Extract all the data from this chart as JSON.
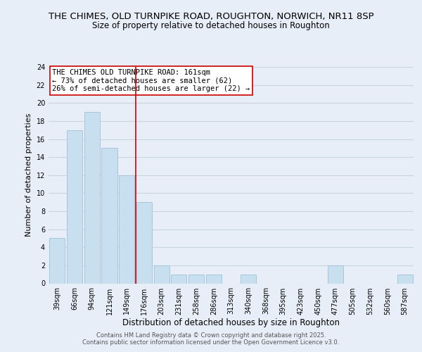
{
  "title": "THE CHIMES, OLD TURNPIKE ROAD, ROUGHTON, NORWICH, NR11 8SP",
  "subtitle": "Size of property relative to detached houses in Roughton",
  "xlabel": "Distribution of detached houses by size in Roughton",
  "ylabel": "Number of detached properties",
  "bar_labels": [
    "39sqm",
    "66sqm",
    "94sqm",
    "121sqm",
    "149sqm",
    "176sqm",
    "203sqm",
    "231sqm",
    "258sqm",
    "286sqm",
    "313sqm",
    "340sqm",
    "368sqm",
    "395sqm",
    "423sqm",
    "450sqm",
    "477sqm",
    "505sqm",
    "532sqm",
    "560sqm",
    "587sqm"
  ],
  "bar_values": [
    5,
    17,
    19,
    15,
    12,
    9,
    2,
    1,
    1,
    1,
    0,
    1,
    0,
    0,
    0,
    0,
    2,
    0,
    0,
    0,
    1
  ],
  "bar_color": "#c8dff0",
  "bar_edge_color": "#a0c0d8",
  "vline_x": 4.5,
  "vline_color": "#cc0000",
  "ylim": [
    0,
    24
  ],
  "yticks": [
    0,
    2,
    4,
    6,
    8,
    10,
    12,
    14,
    16,
    18,
    20,
    22,
    24
  ],
  "annotation_title": "THE CHIMES OLD TURNPIKE ROAD: 161sqm",
  "annotation_line1": "← 73% of detached houses are smaller (62)",
  "annotation_line2": "26% of semi-detached houses are larger (22) →",
  "footer1": "Contains HM Land Registry data © Crown copyright and database right 2025.",
  "footer2": "Contains public sector information licensed under the Open Government Licence v3.0.",
  "background_color": "#e8eef8",
  "plot_background": "#e8eef8",
  "grid_color": "#c8d4e0",
  "title_fontsize": 9.5,
  "subtitle_fontsize": 8.5,
  "annotation_fontsize": 7.5,
  "xlabel_fontsize": 8.5,
  "ylabel_fontsize": 8.0,
  "tick_fontsize": 7.0,
  "footer_fontsize": 6.0
}
